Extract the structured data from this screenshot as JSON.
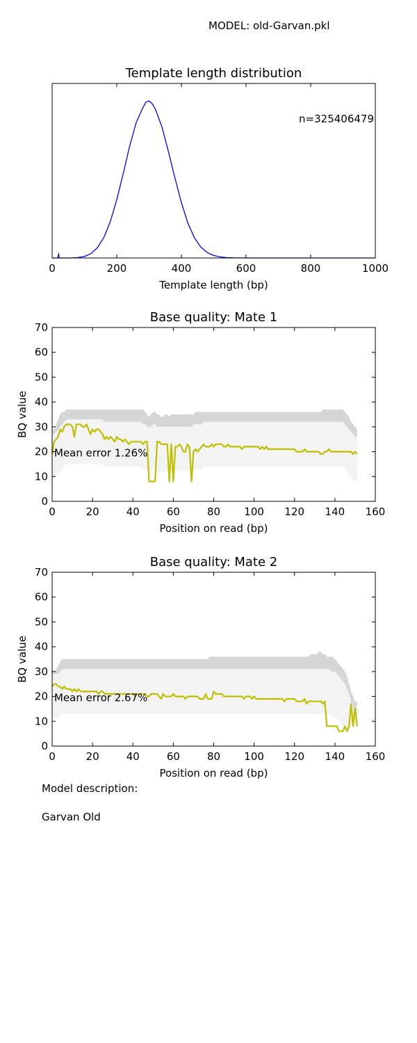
{
  "header": {
    "model_label": "MODEL: old-Garvan.pkl"
  },
  "chart_data": [
    {
      "type": "line",
      "title": "Template length distribution",
      "xlabel": "Template length (bp)",
      "ylabel": "",
      "xlim": [
        0,
        1000
      ],
      "ylim": [
        0,
        1.2
      ],
      "xticks": [
        0,
        200,
        400,
        600,
        800,
        1000
      ],
      "xtick_labels": [
        "0",
        "200",
        "400",
        "600",
        "800",
        "1000"
      ],
      "yticks": [],
      "annotation": "n=325406479",
      "color": "#0000ff",
      "x": [
        0,
        18,
        20,
        22,
        40,
        60,
        80,
        100,
        120,
        140,
        160,
        180,
        200,
        220,
        240,
        260,
        280,
        290,
        300,
        310,
        320,
        340,
        360,
        380,
        400,
        420,
        440,
        460,
        480,
        500,
        520,
        540,
        560,
        580,
        600,
        650,
        700,
        800,
        900,
        1000
      ],
      "y": [
        0,
        0,
        0.03,
        0,
        0,
        0,
        0.003,
        0.01,
        0.03,
        0.07,
        0.14,
        0.25,
        0.4,
        0.58,
        0.77,
        0.93,
        1.03,
        1.07,
        1.08,
        1.06,
        1.02,
        0.9,
        0.73,
        0.55,
        0.38,
        0.24,
        0.14,
        0.075,
        0.037,
        0.017,
        0.007,
        0.003,
        0.001,
        0.0005,
        0,
        0,
        0,
        0,
        0,
        0
      ],
      "grid": false,
      "legend": "none"
    },
    {
      "type": "line",
      "title": "Base quality: Mate 1",
      "xlabel": "Position on read (bp)",
      "ylabel": "BQ value",
      "xlim": [
        0,
        160
      ],
      "ylim": [
        0,
        70
      ],
      "xticks": [
        0,
        20,
        40,
        60,
        80,
        100,
        120,
        140,
        160
      ],
      "yticks": [
        0,
        10,
        20,
        30,
        40,
        50,
        60,
        70
      ],
      "annotation": "Mean error 1.26%",
      "color": "#bfbf00",
      "x": [
        0,
        1,
        2,
        3,
        4,
        5,
        6,
        7,
        8,
        9,
        10,
        11,
        12,
        13,
        14,
        15,
        16,
        17,
        18,
        19,
        20,
        21,
        22,
        23,
        24,
        25,
        26,
        27,
        28,
        29,
        30,
        31,
        32,
        33,
        34,
        35,
        36,
        37,
        38,
        39,
        40,
        41,
        42,
        43,
        44,
        45,
        46,
        47,
        48,
        49,
        50,
        51,
        52,
        53,
        54,
        55,
        56,
        57,
        58,
        59,
        60,
        61,
        62,
        63,
        64,
        65,
        66,
        67,
        68,
        69,
        70,
        71,
        72,
        73,
        74,
        75,
        76,
        77,
        78,
        79,
        80,
        81,
        82,
        83,
        84,
        85,
        86,
        87,
        88,
        89,
        90,
        91,
        92,
        93,
        94,
        95,
        96,
        97,
        98,
        99,
        100,
        101,
        102,
        103,
        104,
        105,
        106,
        107,
        108,
        109,
        110,
        111,
        112,
        113,
        114,
        115,
        116,
        117,
        118,
        119,
        120,
        121,
        122,
        123,
        124,
        125,
        126,
        127,
        128,
        129,
        130,
        131,
        132,
        133,
        134,
        135,
        136,
        137,
        138,
        139,
        140,
        141,
        142,
        143,
        144,
        145,
        146,
        147,
        148,
        149,
        150,
        151
      ],
      "y": [
        19,
        24,
        25,
        26,
        29,
        28,
        30,
        31,
        31,
        31,
        30,
        26,
        31,
        31,
        31,
        30,
        30,
        31,
        29,
        27,
        29,
        28,
        29,
        29,
        28,
        27,
        25,
        26,
        25,
        26,
        25,
        24,
        26,
        25,
        25,
        24,
        25,
        24,
        23,
        24,
        24,
        24,
        24,
        24,
        24,
        23,
        24,
        24,
        8,
        8,
        8,
        8,
        24,
        24,
        23,
        23,
        23,
        23,
        8,
        23,
        8,
        22,
        22,
        23,
        22,
        20,
        20,
        23,
        22,
        8,
        20,
        21,
        20,
        21,
        22,
        23,
        22,
        22,
        22,
        23,
        22,
        23,
        23,
        23,
        23,
        22,
        22,
        23,
        22,
        22,
        22,
        22,
        22,
        22,
        21,
        22,
        22,
        22,
        22,
        22,
        22,
        22,
        22,
        21,
        22,
        21,
        22,
        21,
        21,
        21,
        21,
        21,
        21,
        21,
        21,
        21,
        21,
        21,
        21,
        21,
        21,
        20,
        20,
        20,
        20,
        21,
        20,
        20,
        20,
        20,
        20,
        20,
        20,
        19,
        19,
        20,
        20,
        21,
        20,
        20,
        20,
        20,
        20,
        20,
        20,
        20,
        20,
        20,
        20,
        19,
        20,
        19
      ],
      "upper_band": [
        30,
        29,
        31,
        33,
        35,
        36,
        36,
        37,
        37,
        37,
        37,
        37,
        37,
        37,
        37,
        37,
        37,
        37,
        37,
        37,
        37,
        37,
        37,
        37,
        37,
        37,
        37,
        37,
        37,
        37,
        37,
        37,
        37,
        37,
        37,
        37,
        37,
        37,
        37,
        37,
        37,
        37,
        37,
        37,
        37,
        37,
        36,
        35,
        34,
        35,
        36,
        36,
        35,
        35,
        34,
        34,
        35,
        35,
        34,
        35,
        35,
        35,
        35,
        35,
        35,
        35,
        35,
        35,
        35,
        35,
        35,
        36,
        36,
        36,
        36,
        36,
        36,
        36,
        36,
        36,
        36,
        36,
        36,
        36,
        36,
        36,
        36,
        36,
        36,
        36,
        36,
        36,
        36,
        36,
        36,
        36,
        36,
        36,
        36,
        36,
        36,
        36,
        36,
        36,
        36,
        36,
        36,
        36,
        36,
        36,
        36,
        36,
        36,
        36,
        36,
        36,
        36,
        36,
        36,
        36,
        36,
        36,
        36,
        36,
        36,
        36,
        36,
        36,
        36,
        36,
        36,
        36,
        36,
        36,
        37,
        37,
        37,
        37,
        37,
        37,
        37,
        37,
        37,
        37,
        37,
        36,
        35,
        34,
        32,
        31,
        30,
        29
      ],
      "lower_band": [
        27,
        27,
        28,
        29,
        30,
        31,
        32,
        33,
        33,
        33,
        33,
        33,
        33,
        33,
        33,
        33,
        33,
        33,
        33,
        33,
        33,
        33,
        33,
        33,
        33,
        33,
        32,
        32,
        32,
        32,
        32,
        32,
        32,
        32,
        32,
        32,
        32,
        32,
        32,
        32,
        32,
        32,
        32,
        32,
        32,
        31,
        31,
        30,
        30,
        30,
        31,
        31,
        30,
        30,
        30,
        30,
        30,
        30,
        30,
        30,
        30,
        30,
        30,
        30,
        30,
        30,
        30,
        30,
        30,
        30,
        31,
        31,
        31,
        31,
        31,
        32,
        32,
        32,
        32,
        32,
        32,
        32,
        32,
        32,
        32,
        32,
        32,
        32,
        32,
        32,
        32,
        32,
        32,
        32,
        32,
        32,
        32,
        32,
        32,
        32,
        32,
        32,
        32,
        32,
        32,
        32,
        32,
        32,
        32,
        32,
        32,
        32,
        32,
        32,
        32,
        32,
        32,
        32,
        32,
        32,
        32,
        32,
        32,
        32,
        32,
        32,
        32,
        32,
        32,
        32,
        32,
        32,
        32,
        32,
        32,
        32,
        32,
        32,
        32,
        32,
        32,
        32,
        32,
        32,
        32,
        31,
        30,
        29,
        28,
        27,
        26,
        26
      ],
      "grid": false,
      "legend": "none"
    },
    {
      "type": "line",
      "title": "Base quality: Mate 2",
      "xlabel": "Position on read (bp)",
      "ylabel": "BQ value",
      "xlim": [
        0,
        160
      ],
      "ylim": [
        0,
        70
      ],
      "xticks": [
        0,
        20,
        40,
        60,
        80,
        100,
        120,
        140,
        160
      ],
      "yticks": [
        0,
        10,
        20,
        30,
        40,
        50,
        60,
        70
      ],
      "annotation": "Mean error 2.67%",
      "color": "#bfbf00",
      "x": [
        0,
        1,
        2,
        3,
        4,
        5,
        6,
        7,
        8,
        9,
        10,
        11,
        12,
        13,
        14,
        15,
        16,
        17,
        18,
        19,
        20,
        21,
        22,
        23,
        24,
        25,
        26,
        27,
        28,
        29,
        30,
        31,
        32,
        33,
        34,
        35,
        36,
        37,
        38,
        39,
        40,
        41,
        42,
        43,
        44,
        45,
        46,
        47,
        48,
        49,
        50,
        51,
        52,
        53,
        54,
        55,
        56,
        57,
        58,
        59,
        60,
        61,
        62,
        63,
        64,
        65,
        66,
        67,
        68,
        69,
        70,
        71,
        72,
        73,
        74,
        75,
        76,
        77,
        78,
        79,
        80,
        81,
        82,
        83,
        84,
        85,
        86,
        87,
        88,
        89,
        90,
        91,
        92,
        93,
        94,
        95,
        96,
        97,
        98,
        99,
        100,
        101,
        102,
        103,
        104,
        105,
        106,
        107,
        108,
        109,
        110,
        111,
        112,
        113,
        114,
        115,
        116,
        117,
        118,
        119,
        120,
        121,
        122,
        123,
        124,
        125,
        126,
        127,
        128,
        129,
        130,
        131,
        132,
        133,
        134,
        135,
        136,
        137,
        138,
        139,
        140,
        141,
        142,
        143,
        144,
        145,
        146,
        147,
        148,
        149,
        150,
        151
      ],
      "y": [
        24,
        25,
        25,
        24,
        24,
        23,
        24,
        23,
        23,
        23,
        22,
        23,
        22,
        23,
        22,
        22,
        22,
        22,
        22,
        22,
        22,
        22,
        22,
        21,
        22,
        22,
        21,
        21,
        21,
        21,
        21,
        21,
        21,
        21,
        21,
        21,
        21,
        21,
        21,
        21,
        21,
        20,
        21,
        21,
        21,
        21,
        21,
        20,
        20,
        21,
        21,
        21,
        21,
        20,
        19,
        21,
        20,
        20,
        20,
        20,
        21,
        20,
        20,
        20,
        20,
        20,
        19,
        20,
        20,
        20,
        20,
        20,
        20,
        19,
        19,
        19,
        21,
        19,
        19,
        19,
        22,
        21,
        21,
        21,
        21,
        20,
        20,
        20,
        20,
        20,
        20,
        20,
        20,
        20,
        20,
        19,
        20,
        20,
        20,
        19,
        20,
        19,
        19,
        19,
        19,
        19,
        19,
        19,
        19,
        19,
        19,
        19,
        19,
        19,
        19,
        18,
        19,
        19,
        19,
        19,
        19,
        18,
        18,
        18,
        18,
        19,
        17,
        18,
        18,
        18,
        18,
        18,
        18,
        18,
        17,
        18,
        8,
        8,
        8,
        8,
        8,
        8,
        6,
        6,
        6,
        8,
        6,
        8,
        17,
        8,
        15,
        8
      ],
      "upper_band": [
        31,
        30,
        31,
        32,
        34,
        35,
        35,
        35,
        35,
        35,
        35,
        35,
        35,
        35,
        35,
        35,
        35,
        35,
        35,
        35,
        35,
        35,
        35,
        35,
        35,
        35,
        35,
        35,
        35,
        35,
        35,
        35,
        35,
        35,
        35,
        35,
        35,
        35,
        35,
        35,
        35,
        35,
        35,
        35,
        35,
        35,
        35,
        35,
        35,
        35,
        35,
        35,
        35,
        35,
        35,
        35,
        35,
        35,
        35,
        35,
        35,
        35,
        35,
        35,
        35,
        35,
        35,
        35,
        35,
        35,
        35,
        35,
        35,
        35,
        35,
        35,
        35,
        35,
        36,
        36,
        36,
        36,
        36,
        36,
        36,
        36,
        36,
        36,
        36,
        36,
        36,
        36,
        36,
        36,
        36,
        36,
        36,
        36,
        36,
        36,
        36,
        36,
        36,
        36,
        36,
        36,
        36,
        36,
        36,
        36,
        36,
        36,
        36,
        36,
        36,
        36,
        36,
        36,
        36,
        36,
        36,
        36,
        36,
        36,
        36,
        36,
        36,
        36,
        37,
        37,
        37,
        37,
        38,
        38,
        37,
        37,
        36,
        36,
        36,
        36,
        35,
        34,
        33,
        32,
        31,
        30,
        28,
        25,
        22,
        20,
        18,
        18
      ],
      "lower_band": [
        29,
        29,
        29,
        29,
        30,
        31,
        31,
        31,
        31,
        31,
        31,
        31,
        31,
        31,
        31,
        31,
        31,
        31,
        31,
        31,
        31,
        31,
        31,
        31,
        31,
        31,
        31,
        31,
        31,
        31,
        31,
        31,
        31,
        31,
        31,
        31,
        31,
        31,
        31,
        31,
        31,
        31,
        31,
        31,
        31,
        31,
        31,
        31,
        31,
        31,
        31,
        31,
        31,
        31,
        31,
        31,
        31,
        31,
        31,
        31,
        31,
        31,
        31,
        31,
        31,
        31,
        31,
        31,
        31,
        31,
        31,
        31,
        31,
        31,
        31,
        31,
        31,
        31,
        31,
        31,
        31,
        31,
        31,
        31,
        31,
        31,
        31,
        31,
        31,
        31,
        31,
        31,
        31,
        31,
        31,
        31,
        31,
        31,
        31,
        31,
        31,
        31,
        31,
        31,
        31,
        31,
        31,
        31,
        31,
        31,
        31,
        31,
        31,
        31,
        31,
        31,
        31,
        31,
        31,
        31,
        31,
        31,
        31,
        31,
        31,
        31,
        31,
        31,
        31,
        31,
        31,
        31,
        31,
        31,
        31,
        31,
        31,
        31,
        30,
        30,
        30,
        29,
        28,
        27,
        26,
        25,
        23,
        21,
        18,
        15,
        13,
        12
      ],
      "grid": false,
      "legend": "none"
    }
  ],
  "footer": {
    "description_label": "Model description:",
    "description_value": "Garvan Old"
  }
}
